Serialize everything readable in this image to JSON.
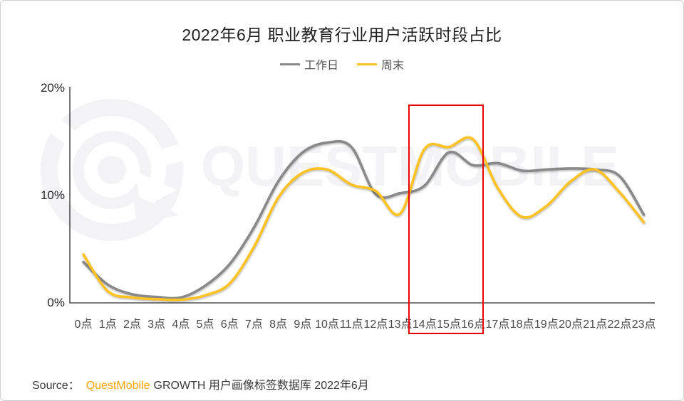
{
  "title": "2022年6月 职业教育行业用户活跃时段占比",
  "legend": [
    {
      "label": "工作日",
      "color": "#898989"
    },
    {
      "label": "周末",
      "color": "#ffc220"
    }
  ],
  "watermark": {
    "text": "QUESTMOBILE",
    "color": "#f3f3f6"
  },
  "source": {
    "prefix": "Source：",
    "brand": "QuestMobile",
    "suffix": "GROWTH 用户画像标签数据库 2022年6月"
  },
  "colors": {
    "workday_line": "#898989",
    "weekend_line": "#ffc220",
    "highlight_red": "#e60000",
    "axis": "#2a2a2a"
  },
  "chart_data": {
    "type": "line",
    "title": "2022年6月 职业教育行业用户活跃时段占比",
    "categories": [
      "0点",
      "1点",
      "2点",
      "3点",
      "4点",
      "5点",
      "6点",
      "7点",
      "8点",
      "9点",
      "10点",
      "11点",
      "12点",
      "13点",
      "14点",
      "15点",
      "16点",
      "17点",
      "18点",
      "19点",
      "20点",
      "21点",
      "22点",
      "23点"
    ],
    "series": [
      {
        "name": "工作日",
        "color": "#898989",
        "values": [
          3.8,
          1.7,
          0.8,
          0.55,
          0.5,
          1.6,
          3.6,
          7.0,
          11.3,
          14.0,
          14.9,
          14.5,
          10.1,
          10.2,
          10.9,
          14.0,
          12.8,
          13.0,
          12.3,
          12.4,
          12.5,
          12.4,
          11.8,
          8.2
        ]
      },
      {
        "name": "周末",
        "color": "#ffc220",
        "values": [
          4.5,
          1.1,
          0.5,
          0.35,
          0.3,
          0.7,
          1.8,
          5.2,
          9.8,
          12.1,
          12.4,
          11.0,
          10.4,
          8.3,
          14.3,
          14.5,
          15.2,
          10.7,
          8.0,
          9.0,
          11.3,
          12.4,
          10.3,
          7.5
        ]
      }
    ],
    "xlabel": "",
    "ylabel": "",
    "ylim": [
      0,
      20
    ],
    "yticks": [
      {
        "label": "20%",
        "value": 20
      },
      {
        "label": "10%",
        "value": 10
      },
      {
        "label": "0%",
        "value": 0
      }
    ],
    "grid": false,
    "legend_position": "top",
    "highlight": {
      "from": "14点",
      "to": "16点",
      "color": "#e60000"
    }
  }
}
